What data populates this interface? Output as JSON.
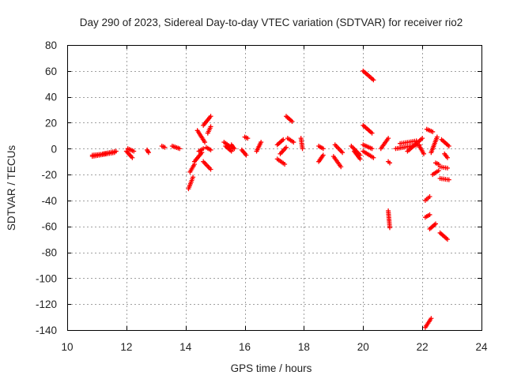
{
  "chart_data": {
    "type": "scatter",
    "title": "Day 290 of 2023, Sidereal Day-to-day VTEC variation (SDTVAR) for receiver rio2",
    "xlabel": "GPS time / hours",
    "ylabel": "SDTVAR / TECUs",
    "xlim": [
      10,
      24
    ],
    "ylim": [
      -140,
      80
    ],
    "xticks": [
      10,
      12,
      14,
      16,
      18,
      20,
      22,
      24
    ],
    "yticks": [
      80,
      60,
      40,
      20,
      0,
      -20,
      -40,
      -60,
      -80,
      -100,
      -120,
      -140
    ],
    "grid": true,
    "marker": "+",
    "color": "#ff0000",
    "segments": [
      {
        "x": [
          10.85,
          11.6
        ],
        "y": [
          -6,
          -3
        ]
      },
      {
        "x": [
          10.85,
          11.3
        ],
        "y": [
          -5,
          -4
        ]
      },
      {
        "x": [
          11.2,
          11.65
        ],
        "y": [
          -4,
          -2
        ]
      },
      {
        "x": [
          12.0,
          12.2
        ],
        "y": [
          -2,
          -7
        ]
      },
      {
        "x": [
          12.05,
          12.25
        ],
        "y": [
          0,
          -2
        ]
      },
      {
        "x": [
          12.7,
          12.75
        ],
        "y": [
          -1,
          -3
        ]
      },
      {
        "x": [
          13.2,
          13.3
        ],
        "y": [
          2,
          1
        ]
      },
      {
        "x": [
          13.55,
          13.8
        ],
        "y": [
          2,
          0
        ]
      },
      {
        "x": [
          14.1,
          14.25
        ],
        "y": [
          -31,
          -22
        ]
      },
      {
        "x": [
          14.15,
          14.3
        ],
        "y": [
          -18,
          -12
        ]
      },
      {
        "x": [
          14.3,
          14.55
        ],
        "y": [
          -10,
          -3
        ]
      },
      {
        "x": [
          14.45,
          14.6
        ],
        "y": [
          -2,
          0
        ]
      },
      {
        "x": [
          14.4,
          14.65
        ],
        "y": [
          14,
          5
        ]
      },
      {
        "x": [
          14.6,
          14.85
        ],
        "y": [
          18,
          25
        ]
      },
      {
        "x": [
          14.75,
          14.85
        ],
        "y": [
          12,
          17
        ]
      },
      {
        "x": [
          14.6,
          14.85
        ],
        "y": [
          -10,
          -16
        ]
      },
      {
        "x": [
          14.7,
          14.85
        ],
        "y": [
          1,
          -1
        ]
      },
      {
        "x": [
          15.3,
          15.6
        ],
        "y": [
          5,
          0
        ]
      },
      {
        "x": [
          15.35,
          15.55
        ],
        "y": [
          2,
          -2
        ]
      },
      {
        "x": [
          15.55,
          15.65
        ],
        "y": [
          3,
          0
        ]
      },
      {
        "x": [
          15.9,
          16.05
        ],
        "y": [
          -1,
          -5
        ]
      },
      {
        "x": [
          16.0,
          16.1
        ],
        "y": [
          9,
          8
        ]
      },
      {
        "x": [
          16.4,
          16.55
        ],
        "y": [
          -2,
          5
        ]
      },
      {
        "x": [
          17.1,
          17.3
        ],
        "y": [
          3,
          7
        ]
      },
      {
        "x": [
          17.1,
          17.35
        ],
        "y": [
          -8,
          -12
        ]
      },
      {
        "x": [
          17.2,
          17.4
        ],
        "y": [
          -4,
          1
        ]
      },
      {
        "x": [
          17.4,
          17.6
        ],
        "y": [
          25,
          21
        ]
      },
      {
        "x": [
          17.45,
          17.65
        ],
        "y": [
          8,
          5
        ]
      },
      {
        "x": [
          17.9,
          17.95
        ],
        "y": [
          8,
          0
        ]
      },
      {
        "x": [
          18.5,
          18.65
        ],
        "y": [
          -10,
          -5
        ]
      },
      {
        "x": [
          18.5,
          18.65
        ],
        "y": [
          2,
          0
        ]
      },
      {
        "x": [
          19.0,
          19.25
        ],
        "y": [
          -6,
          -14
        ]
      },
      {
        "x": [
          19.05,
          19.3
        ],
        "y": [
          3,
          -3
        ]
      },
      {
        "x": [
          19.6,
          19.9
        ],
        "y": [
          2,
          -5
        ]
      },
      {
        "x": [
          19.7,
          19.9
        ],
        "y": [
          -2,
          -8
        ]
      },
      {
        "x": [
          20.0,
          20.35
        ],
        "y": [
          60,
          53
        ]
      },
      {
        "x": [
          20.0,
          20.3
        ],
        "y": [
          18,
          12
        ]
      },
      {
        "x": [
          20.0,
          20.35
        ],
        "y": [
          -2,
          -7
        ]
      },
      {
        "x": [
          20.0,
          20.3
        ],
        "y": [
          3,
          0
        ]
      },
      {
        "x": [
          20.6,
          20.85
        ],
        "y": [
          0,
          8
        ]
      },
      {
        "x": [
          20.85,
          20.9
        ],
        "y": [
          -10,
          -11
        ]
      },
      {
        "x": [
          20.85,
          20.9
        ],
        "y": [
          -48,
          -61
        ]
      },
      {
        "x": [
          21.1,
          21.9
        ],
        "y": [
          0,
          3
        ]
      },
      {
        "x": [
          21.25,
          21.8
        ],
        "y": [
          4,
          6
        ]
      },
      {
        "x": [
          21.5,
          22.0
        ],
        "y": [
          -2,
          8
        ]
      },
      {
        "x": [
          21.9,
          22.05
        ],
        "y": [
          2,
          -4
        ]
      },
      {
        "x": [
          22.15,
          22.35
        ],
        "y": [
          15,
          13
        ]
      },
      {
        "x": [
          22.1,
          22.25
        ],
        "y": [
          -40,
          -37
        ]
      },
      {
        "x": [
          22.1,
          22.25
        ],
        "y": [
          -53,
          -51
        ]
      },
      {
        "x": [
          22.1,
          22.3
        ],
        "y": [
          -138,
          -131
        ]
      },
      {
        "x": [
          22.3,
          22.5
        ],
        "y": [
          -3,
          9
        ]
      },
      {
        "x": [
          22.25,
          22.45
        ],
        "y": [
          -62,
          -58
        ]
      },
      {
        "x": [
          22.35,
          22.55
        ],
        "y": [
          -20,
          -17
        ]
      },
      {
        "x": [
          22.45,
          22.55
        ],
        "y": [
          -11,
          -12
        ]
      },
      {
        "x": [
          22.6,
          22.85
        ],
        "y": [
          -65,
          -70
        ]
      },
      {
        "x": [
          22.6,
          22.85
        ],
        "y": [
          -14,
          -15
        ]
      },
      {
        "x": [
          22.6,
          22.9
        ],
        "y": [
          -23,
          -24
        ]
      },
      {
        "x": [
          22.65,
          22.9
        ],
        "y": [
          7,
          2
        ]
      },
      {
        "x": [
          22.75,
          22.85
        ],
        "y": [
          -4,
          -7
        ]
      }
    ]
  }
}
